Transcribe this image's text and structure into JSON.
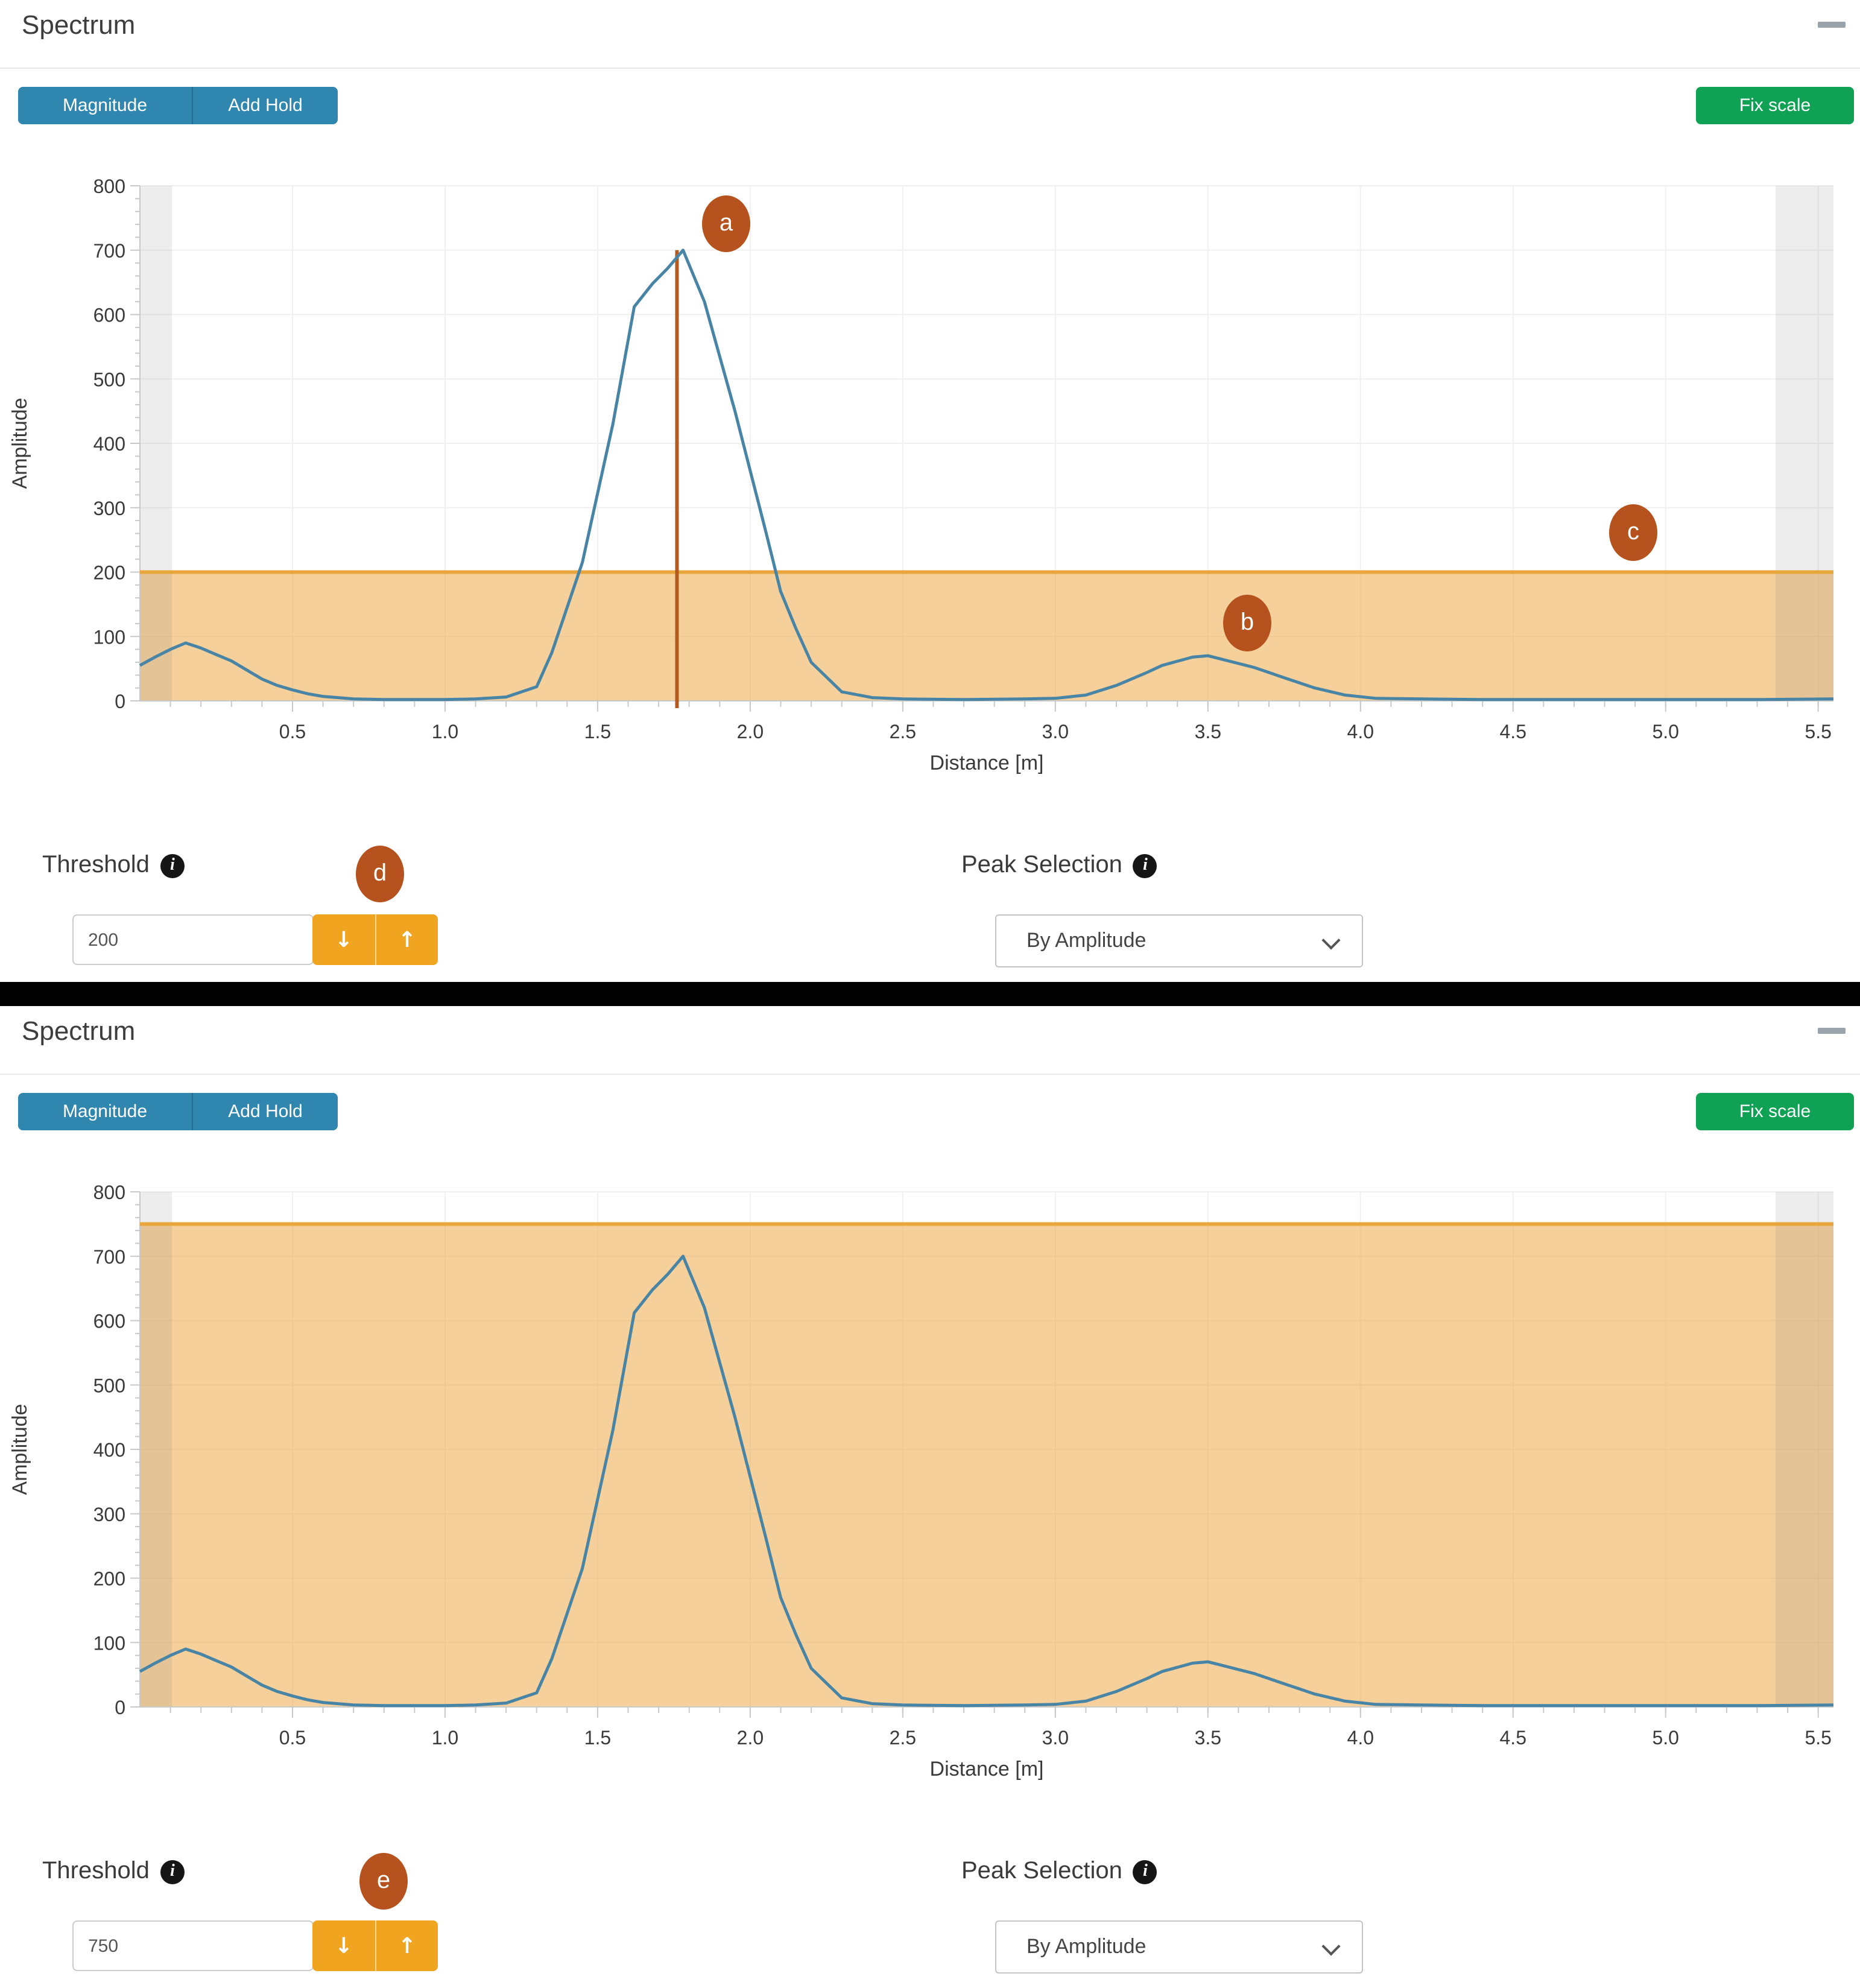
{
  "panels": [
    {
      "title": "Spectrum",
      "toolbar": {
        "magnitude_label": "Magnitude",
        "add_hold_label": "Add Hold",
        "fix_scale_label": "Fix scale"
      },
      "threshold": {
        "label": "Threshold",
        "value": "200"
      },
      "peak_selection": {
        "label": "Peak Selection",
        "value": "By Amplitude"
      }
    },
    {
      "title": "Spectrum",
      "toolbar": {
        "magnitude_label": "Magnitude",
        "add_hold_label": "Add Hold",
        "fix_scale_label": "Fix scale"
      },
      "threshold": {
        "label": "Threshold",
        "value": "750"
      },
      "peak_selection": {
        "label": "Peak Selection",
        "value": "By Amplitude"
      }
    }
  ],
  "annotations": {
    "a": "a",
    "b": "b",
    "c": "c",
    "d": "d",
    "e": "e"
  },
  "icons": {
    "info": "i",
    "down_arrow": "↓",
    "up_arrow": "↑"
  },
  "colors": {
    "accent_blue": "#2f87b0",
    "accent_green": "#0fa254",
    "stepper_orange": "#f0a41f",
    "badge_orange": "#b5521d",
    "line_blue": "#4884a6",
    "threshold_line": "#e8a63c",
    "threshold_fill": "rgba(236,162,53,0.5)",
    "marker_red": "#b35a1f",
    "mask_gray": "rgba(128,128,128,0.14)",
    "grid": "#f0f0f0",
    "axis": "#c9c9c9",
    "tick_text": "#3a3a3a"
  },
  "chart_data": [
    {
      "type": "line",
      "title": "",
      "xlabel": "Distance [m]",
      "ylabel": "Amplitude",
      "x_range": [
        0,
        5.55
      ],
      "y_range": [
        0,
        800
      ],
      "x_tick_labels": [
        "0.5",
        "1.0",
        "1.5",
        "2.0",
        "2.5",
        "3.0",
        "3.5",
        "4.0",
        "4.5",
        "5.0",
        "5.5"
      ],
      "y_tick_labels": [
        "0",
        "100",
        "200",
        "300",
        "400",
        "500",
        "600",
        "700",
        "800"
      ],
      "x_minor_step": 0.1,
      "y_minor_step": 20,
      "grid": true,
      "threshold": 200,
      "marker_x": 1.76,
      "marker_top": 700,
      "masked_regions": [
        [
          0,
          0.105
        ],
        [
          5.36,
          5.55
        ]
      ],
      "series": [
        {
          "name": "Magnitude",
          "points": [
            [
              0,
              55
            ],
            [
              0.05,
              68
            ],
            [
              0.1,
              80
            ],
            [
              0.15,
              90
            ],
            [
              0.2,
              82
            ],
            [
              0.25,
              72
            ],
            [
              0.3,
              62
            ],
            [
              0.35,
              48
            ],
            [
              0.4,
              34
            ],
            [
              0.45,
              24
            ],
            [
              0.5,
              17
            ],
            [
              0.55,
              11
            ],
            [
              0.6,
              7
            ],
            [
              0.7,
              3
            ],
            [
              0.8,
              2
            ],
            [
              0.9,
              2
            ],
            [
              1.0,
              2
            ],
            [
              1.1,
              3
            ],
            [
              1.2,
              6
            ],
            [
              1.3,
              22
            ],
            [
              1.35,
              75
            ],
            [
              1.45,
              215
            ],
            [
              1.55,
              430
            ],
            [
              1.62,
              612
            ],
            [
              1.68,
              648
            ],
            [
              1.73,
              672
            ],
            [
              1.78,
              700
            ],
            [
              1.85,
              620
            ],
            [
              1.95,
              450
            ],
            [
              2.05,
              265
            ],
            [
              2.1,
              170
            ],
            [
              2.15,
              112
            ],
            [
              2.2,
              60
            ],
            [
              2.3,
              14
            ],
            [
              2.4,
              5
            ],
            [
              2.5,
              3
            ],
            [
              2.7,
              2
            ],
            [
              2.9,
              3
            ],
            [
              3.0,
              4
            ],
            [
              3.1,
              9
            ],
            [
              3.2,
              24
            ],
            [
              3.3,
              44
            ],
            [
              3.35,
              55
            ],
            [
              3.45,
              68
            ],
            [
              3.5,
              70
            ],
            [
              3.55,
              64
            ],
            [
              3.65,
              52
            ],
            [
              3.75,
              36
            ],
            [
              3.85,
              20
            ],
            [
              3.95,
              9
            ],
            [
              4.05,
              4
            ],
            [
              4.2,
              3
            ],
            [
              4.4,
              2
            ],
            [
              4.7,
              2
            ],
            [
              5.0,
              2
            ],
            [
              5.3,
              2
            ],
            [
              5.55,
              3
            ]
          ]
        }
      ]
    },
    {
      "type": "line",
      "title": "",
      "xlabel": "Distance [m]",
      "ylabel": "Amplitude",
      "x_range": [
        0,
        5.55
      ],
      "y_range": [
        0,
        800
      ],
      "x_tick_labels": [
        "0.5",
        "1.0",
        "1.5",
        "2.0",
        "2.5",
        "3.0",
        "3.5",
        "4.0",
        "4.5",
        "5.0",
        "5.5"
      ],
      "y_tick_labels": [
        "0",
        "100",
        "200",
        "300",
        "400",
        "500",
        "600",
        "700",
        "800"
      ],
      "x_minor_step": 0.1,
      "y_minor_step": 20,
      "grid": true,
      "threshold": 750,
      "marker_x": null,
      "marker_top": null,
      "masked_regions": [
        [
          0,
          0.105
        ],
        [
          5.36,
          5.55
        ]
      ],
      "series": [
        {
          "name": "Magnitude",
          "points": [
            [
              0,
              55
            ],
            [
              0.05,
              68
            ],
            [
              0.1,
              80
            ],
            [
              0.15,
              90
            ],
            [
              0.2,
              82
            ],
            [
              0.25,
              72
            ],
            [
              0.3,
              62
            ],
            [
              0.35,
              48
            ],
            [
              0.4,
              34
            ],
            [
              0.45,
              24
            ],
            [
              0.5,
              17
            ],
            [
              0.55,
              11
            ],
            [
              0.6,
              7
            ],
            [
              0.7,
              3
            ],
            [
              0.8,
              2
            ],
            [
              0.9,
              2
            ],
            [
              1.0,
              2
            ],
            [
              1.1,
              3
            ],
            [
              1.2,
              6
            ],
            [
              1.3,
              22
            ],
            [
              1.35,
              75
            ],
            [
              1.45,
              215
            ],
            [
              1.55,
              430
            ],
            [
              1.62,
              612
            ],
            [
              1.68,
              648
            ],
            [
              1.73,
              672
            ],
            [
              1.78,
              700
            ],
            [
              1.85,
              620
            ],
            [
              1.95,
              450
            ],
            [
              2.05,
              265
            ],
            [
              2.1,
              170
            ],
            [
              2.15,
              112
            ],
            [
              2.2,
              60
            ],
            [
              2.3,
              14
            ],
            [
              2.4,
              5
            ],
            [
              2.5,
              3
            ],
            [
              2.7,
              2
            ],
            [
              2.9,
              3
            ],
            [
              3.0,
              4
            ],
            [
              3.1,
              9
            ],
            [
              3.2,
              24
            ],
            [
              3.3,
              44
            ],
            [
              3.35,
              55
            ],
            [
              3.45,
              68
            ],
            [
              3.5,
              70
            ],
            [
              3.55,
              64
            ],
            [
              3.65,
              52
            ],
            [
              3.75,
              36
            ],
            [
              3.85,
              20
            ],
            [
              3.95,
              9
            ],
            [
              4.05,
              4
            ],
            [
              4.2,
              3
            ],
            [
              4.4,
              2
            ],
            [
              4.7,
              2
            ],
            [
              5.0,
              2
            ],
            [
              5.3,
              2
            ],
            [
              5.55,
              3
            ]
          ]
        }
      ]
    }
  ]
}
